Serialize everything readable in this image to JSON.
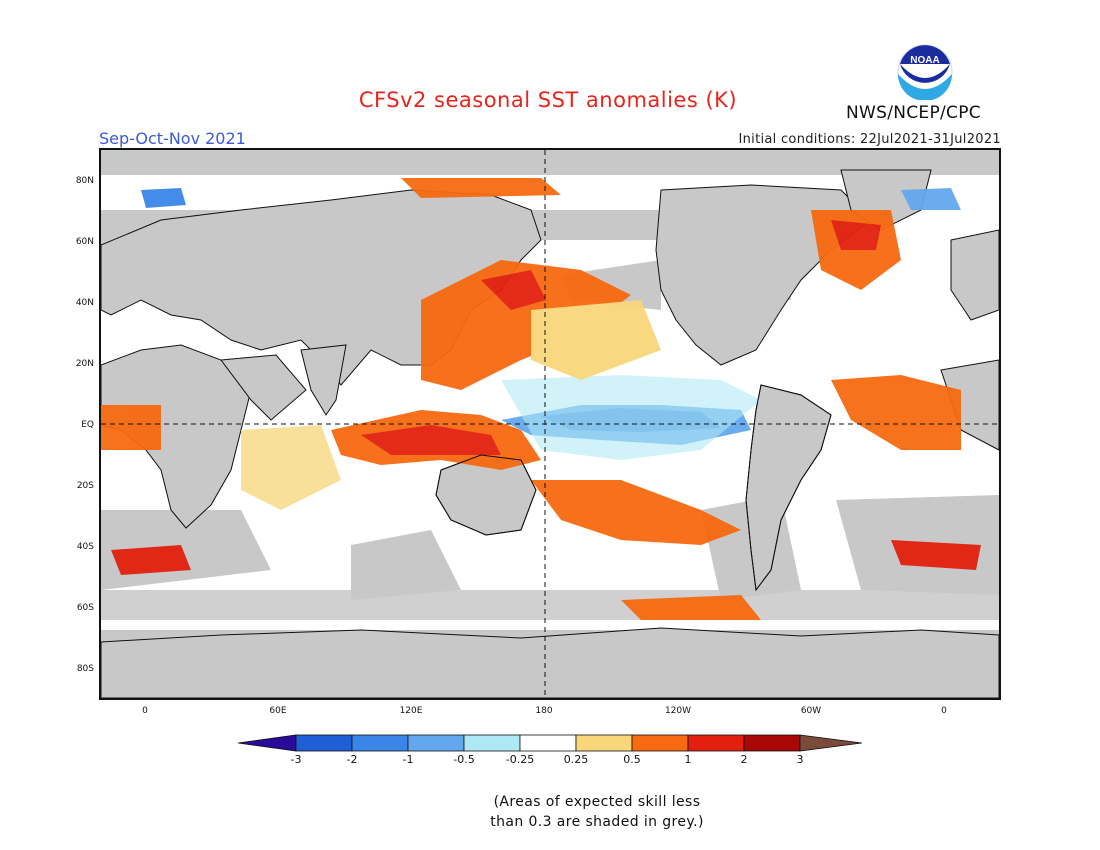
{
  "header": {
    "title": "CFSv2 seasonal SST anomalies (K)",
    "agency": "NWS/NCEP/CPC",
    "logo_text": "NOAA",
    "season": "Sep-Oct-Nov 2021",
    "initial_conditions": "Initial conditions: 22Jul2021-31Jul2021"
  },
  "axes": {
    "lat_labels": [
      "80N",
      "60N",
      "40N",
      "20N",
      "EQ",
      "20S",
      "40S",
      "60S",
      "80S"
    ],
    "lon_labels": [
      "0",
      "60E",
      "120E",
      "180",
      "120W",
      "60W",
      "0"
    ]
  },
  "colorbar": {
    "labels": [
      "-3",
      "-2",
      "-1",
      "-0.5",
      "-0.25",
      "0.25",
      "0.5",
      "1",
      "2",
      "3"
    ],
    "colors": [
      "#2a0a9a",
      "#1f5fd6",
      "#3a86e8",
      "#63a8ee",
      "#aee8f4",
      "#ffffff",
      "#f8d67a",
      "#f76a10",
      "#e3200e",
      "#a80808",
      "#7a4a3a"
    ]
  },
  "palette": {
    "land": "#c8c8c8",
    "no_skill_grey": "#c8c8c8",
    "title_red": "#e8241c",
    "season_blue": "#3a5bd8"
  },
  "footnote": {
    "line1": "(Areas of expected skill less",
    "line2": "than 0.3 are shaded in grey.)"
  }
}
